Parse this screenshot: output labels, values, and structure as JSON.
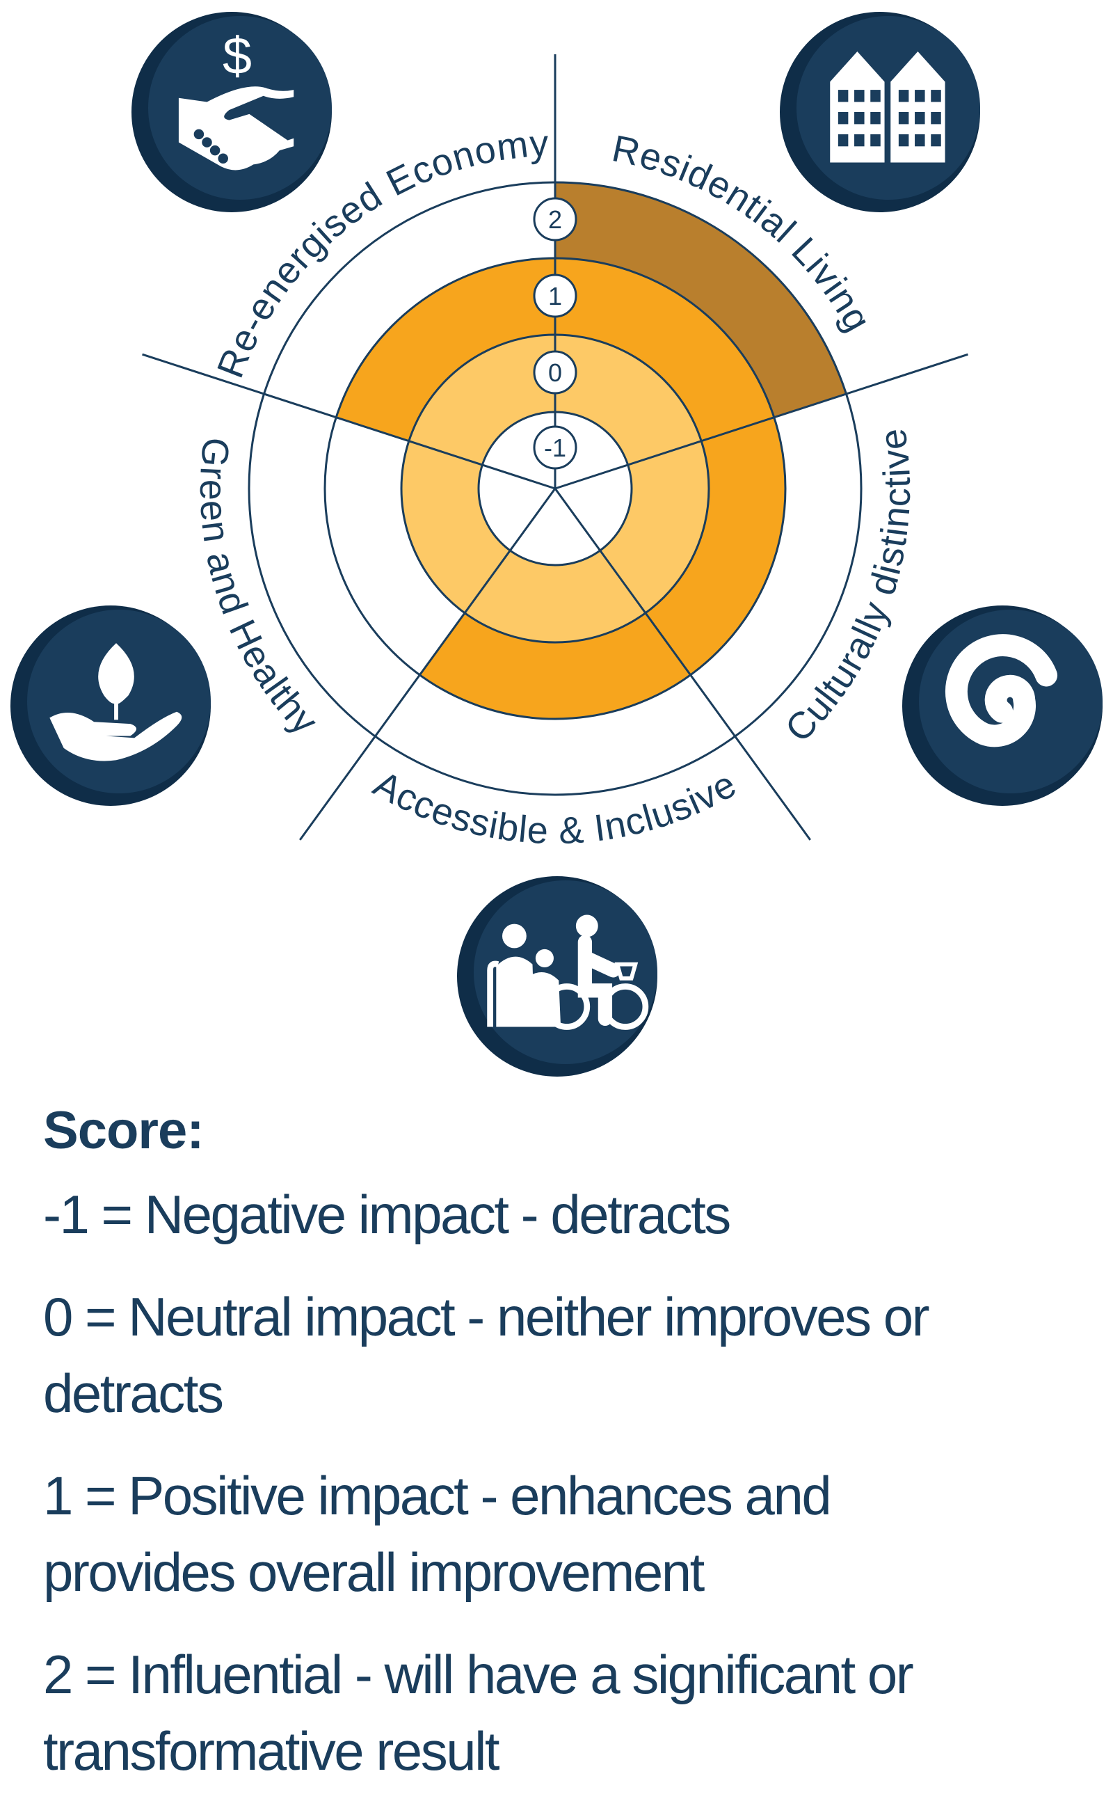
{
  "chart_data": {
    "type": "radial-sector",
    "scale_levels": [
      "-1",
      "0",
      "1",
      "2"
    ],
    "categories": [
      "Residential Living",
      "Culturally distinctive",
      "Accessible & Inclusive",
      "Green and Healthy",
      "Re-energised Economy"
    ],
    "values": [
      2,
      1,
      1,
      0,
      1
    ],
    "category_icons": [
      "buildings-icon",
      "koru-spiral-icon",
      "people-mobility-icon",
      "leaf-in-hand-icon",
      "handshake-dollar-icon"
    ],
    "band_colors": {
      "0": "#fdc966",
      "1": "#f7a51d",
      "2": "#b97f2d"
    },
    "line_color": "#1a3d5c",
    "icon_color": "#1a3d5c"
  },
  "legend": {
    "title": "Score:",
    "items": [
      {
        "lines": [
          "-1 = Negative impact - detracts"
        ]
      },
      {
        "lines": [
          "0 = Neutral impact - neither improves or",
          "detracts"
        ]
      },
      {
        "lines": [
          "1 = Positive impact - enhances and",
          "provides overall improvement"
        ]
      },
      {
        "lines": [
          "2 = Influential - will have a significant or",
          "transformative result"
        ]
      }
    ]
  }
}
